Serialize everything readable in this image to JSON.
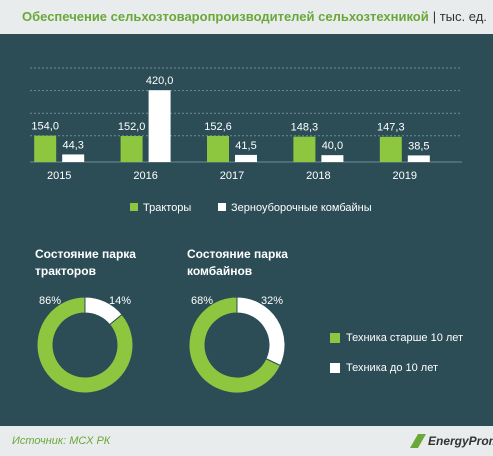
{
  "title": "Обеспечение сельхозтоваропроизводителей сельхозтехникой",
  "unit": "| тыс. ед.",
  "chart_data": [
    {
      "type": "bar",
      "categories": [
        "2015",
        "2016",
        "2017",
        "2018",
        "2019"
      ],
      "series": [
        {
          "name": "Тракторы",
          "color": "#8dc63f",
          "values": [
            154.0,
            152.0,
            152.6,
            148.3,
            147.3
          ],
          "value_labels": [
            "154,0",
            "152,0",
            "152,6",
            "148,3",
            "147,3"
          ]
        },
        {
          "name": "Зерноуборочные комбайны",
          "color": "#ffffff",
          "values": [
            44.3,
            420.0,
            41.5,
            40.0,
            38.5
          ],
          "value_labels": [
            "44,3",
            "420,0",
            "41,5",
            "40,0",
            "38,5"
          ]
        }
      ],
      "ylim": [
        0,
        550
      ]
    },
    {
      "type": "pie",
      "title": [
        "Состояние парка",
        "тракторов"
      ],
      "values": [
        86,
        14
      ],
      "value_labels": [
        "86%",
        "14%"
      ],
      "colors": [
        "#8dc63f",
        "#ffffff"
      ]
    },
    {
      "type": "pie",
      "title": [
        "Состояние парка",
        "комбайнов"
      ],
      "values": [
        68,
        32
      ],
      "value_labels": [
        "68%",
        "32%"
      ],
      "colors": [
        "#8dc63f",
        "#ffffff"
      ]
    }
  ],
  "pie_legend": {
    "labels": [
      "Техника старше 10 лет",
      "Техника до 10 лет"
    ],
    "colors": [
      "#8dc63f",
      "#ffffff"
    ]
  },
  "source": "Источник: МСХ РК",
  "logo": "EnergyProm"
}
